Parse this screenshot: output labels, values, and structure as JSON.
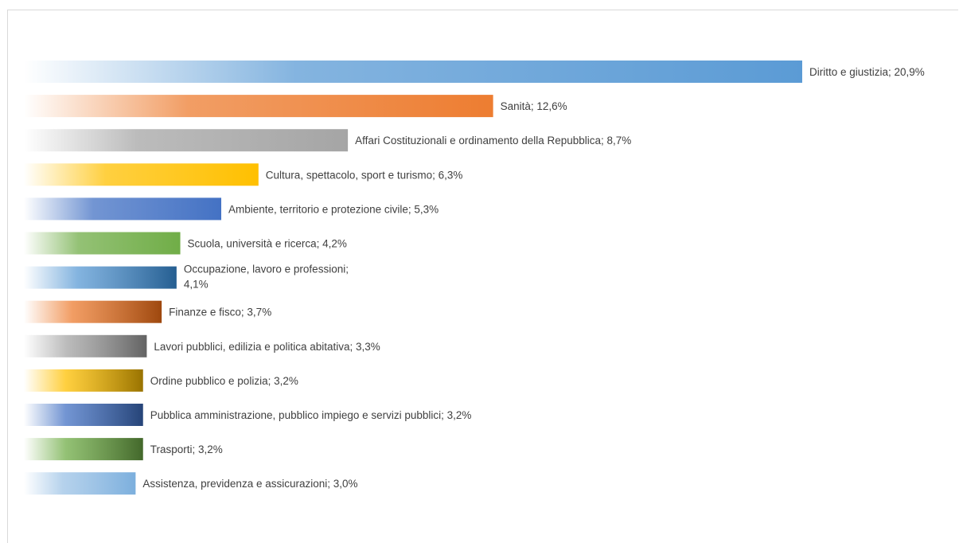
{
  "chart_data": {
    "type": "bar",
    "orientation": "horizontal",
    "title": "",
    "xlabel": "",
    "ylabel": "",
    "grid": false,
    "legend": "none",
    "categories": [
      "Diritto e giustizia",
      "Sanità",
      "Affari Costituzionali e ordinamento della Repubblica",
      "Cultura, spettacolo, sport e turismo",
      "Ambiente, territorio e protezione civile",
      "Scuola, università e ricerca",
      "Occupazione, lavoro e professioni",
      "Finanze e fisco",
      "Lavori pubblici, edilizia e politica abitativa",
      "Ordine pubblico e polizia",
      "Pubblica amministrazione, pubblico impiego e servizi pubblici",
      "Trasporti",
      "Assistenza, previdenza e assicurazioni"
    ],
    "labels": [
      "Diritto e giustizia; 20,9%",
      "Sanità; 12,6%",
      "Affari Costituzionali e ordinamento della Repubblica; 8,7%",
      "Cultura, spettacolo, sport e turismo; 6,3%",
      "Ambiente, territorio e protezione civile; 5,3%",
      "Scuola, università e ricerca; 4,2%",
      [
        "Occupazione, lavoro e professioni;",
        "4,1%"
      ],
      "Finanze e fisco; 3,7%",
      "Lavori pubblici, edilizia e politica abitativa; 3,3%",
      "Ordine pubblico e polizia; 3,2%",
      "Pubblica amministrazione, pubblico impiego e servizi pubblici; 3,2%",
      "Trasporti; 3,2%",
      "Assistenza, previdenza e assicurazioni; 3,0%"
    ],
    "values": [
      20.9,
      12.6,
      8.7,
      6.3,
      5.3,
      4.2,
      4.1,
      3.7,
      3.3,
      3.2,
      3.2,
      3.2,
      3.0
    ],
    "xlim": [
      0,
      20.9
    ],
    "colors": [
      "#5b9bd5",
      "#ed7d31",
      "#a5a5a5",
      "#ffc000",
      "#4472c4",
      "#70ad47",
      "#255e91",
      "#9e480e",
      "#636363",
      "#997300",
      "#264478",
      "#43682b",
      "#7cafdd"
    ],
    "gradient_start_colors": [
      "#5b9bd5",
      "#ed7d31",
      "#a5a5a5",
      "#ffc000",
      "#4472c4",
      "#70ad47",
      "#5b9bd5",
      "#ed7d31",
      "#a5a5a5",
      "#ffc000",
      "#4472c4",
      "#70ad47",
      "#9dc3e6"
    ]
  }
}
